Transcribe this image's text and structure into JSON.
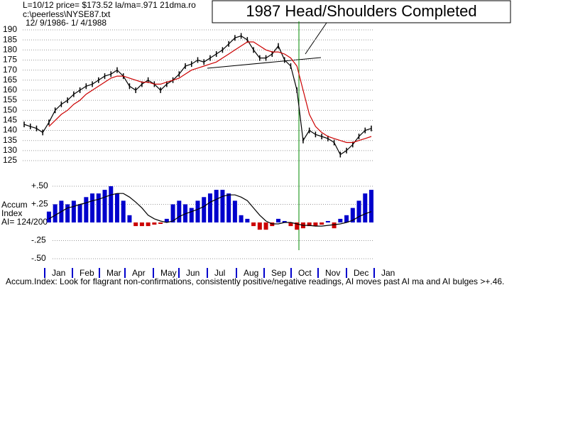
{
  "chart_data": {
    "type": "stock",
    "header": [
      "L=10/12  price= $173.52  la/ma=.971 21dma.ro",
      "c:\\peerless\\NYSE87.txt",
      "12/ 9/1986- 1/ 4/1988"
    ],
    "annotation": "1987 Head/Shoulders Completed",
    "months": [
      "Jan",
      "Feb",
      "Mar",
      "Apr",
      "May",
      "Jun",
      "Jul",
      "Aug",
      "Sep",
      "Oct",
      "Nov",
      "Dec",
      "Jan"
    ],
    "categories": [
      null,
      null,
      null,
      null,
      null,
      null,
      null,
      null,
      null,
      null,
      null,
      null,
      null,
      null,
      null,
      null,
      null,
      null,
      null,
      null,
      null,
      null,
      null,
      null,
      null,
      null,
      null,
      null,
      null,
      null,
      null,
      null,
      null,
      null,
      null,
      null,
      null,
      null,
      null,
      null,
      null,
      null,
      null,
      null,
      null,
      null,
      null,
      null,
      null,
      null,
      null,
      null,
      null,
      null,
      null,
      null,
      null
    ],
    "series": [
      {
        "name": "price",
        "color": "#000000",
        "values": [
          143,
          142,
          141,
          139,
          144,
          150,
          153,
          155,
          158,
          160,
          162,
          163,
          165,
          167,
          168,
          170,
          167,
          162,
          160,
          163,
          165,
          163,
          160,
          163,
          165,
          168,
          172,
          173,
          175,
          174,
          176,
          178,
          180,
          183,
          186,
          187,
          185,
          180,
          176,
          176,
          178,
          182,
          175,
          172,
          160,
          135,
          140,
          138,
          137,
          136,
          134,
          128,
          130,
          133,
          137,
          140,
          141
        ]
      },
      {
        "name": "21dma",
        "color": "#cc0000",
        "values": [
          null,
          null,
          null,
          null,
          142,
          145,
          148,
          150,
          153,
          155,
          158,
          160,
          162,
          164,
          166,
          167,
          167,
          166,
          165,
          164,
          164,
          163,
          163,
          164,
          165,
          166,
          168,
          170,
          171,
          172,
          173,
          174,
          176,
          178,
          180,
          182,
          184,
          184,
          182,
          180,
          179,
          179,
          178,
          176,
          172,
          160,
          148,
          142,
          139,
          137,
          136,
          135,
          134,
          134,
          135,
          136,
          137
        ]
      }
    ],
    "ylim": [
      125,
      190
    ],
    "yticks": [
      125,
      130,
      135,
      140,
      145,
      150,
      155,
      160,
      165,
      170,
      175,
      180,
      185,
      190
    ],
    "grid": true,
    "accum": {
      "label": [
        "Accum",
        "Index",
        "AI= 124/200"
      ],
      "pos_color": "#0000cc",
      "neg_color": "#cc0000",
      "values": [
        null,
        null,
        null,
        null,
        0.15,
        0.25,
        0.3,
        0.25,
        0.3,
        0.25,
        0.35,
        0.4,
        0.4,
        0.45,
        0.5,
        0.4,
        0.3,
        0.1,
        -0.05,
        -0.05,
        -0.05,
        -0.03,
        -0.02,
        0.05,
        0.25,
        0.3,
        0.25,
        0.2,
        0.3,
        0.35,
        0.4,
        0.45,
        0.45,
        0.4,
        0.3,
        0.1,
        0.05,
        -0.05,
        -0.1,
        -0.1,
        -0.05,
        0.05,
        0.02,
        -0.05,
        -0.1,
        -0.08,
        -0.05,
        -0.05,
        -0.03,
        0.02,
        -0.08,
        0.05,
        0.1,
        0.2,
        0.3,
        0.4,
        0.45
      ],
      "ma_color": "#000000",
      "ma": [
        null,
        null,
        null,
        null,
        0.05,
        0.1,
        0.15,
        0.2,
        0.22,
        0.25,
        0.27,
        0.3,
        0.32,
        0.35,
        0.38,
        0.4,
        0.4,
        0.35,
        0.28,
        0.2,
        0.1,
        0.05,
        0.02,
        0,
        0.02,
        0.08,
        0.12,
        0.15,
        0.18,
        0.22,
        0.28,
        0.32,
        0.36,
        0.38,
        0.38,
        0.35,
        0.3,
        0.2,
        0.1,
        0.02,
        -0.02,
        -0.02,
        0,
        0,
        -0.02,
        -0.04,
        -0.04,
        -0.05,
        -0.05,
        -0.04,
        -0.03,
        -0.02,
        0,
        0.03,
        0.08,
        0.12,
        0.15
      ],
      "ylim": [
        -0.5,
        0.5
      ],
      "yticks": [
        {
          "value": -0.5,
          "label": "-.50"
        },
        {
          "value": -0.25,
          "label": "-.25"
        },
        {
          "value": 0.25,
          "label": "+.25"
        },
        {
          "value": 0.5,
          "label": "+.50"
        }
      ]
    },
    "footer": "Accum.Index: Look for flagrant non-confirmations, consistently positive/negative readings, AI moves past AI ma and AI bulges >+.46."
  }
}
